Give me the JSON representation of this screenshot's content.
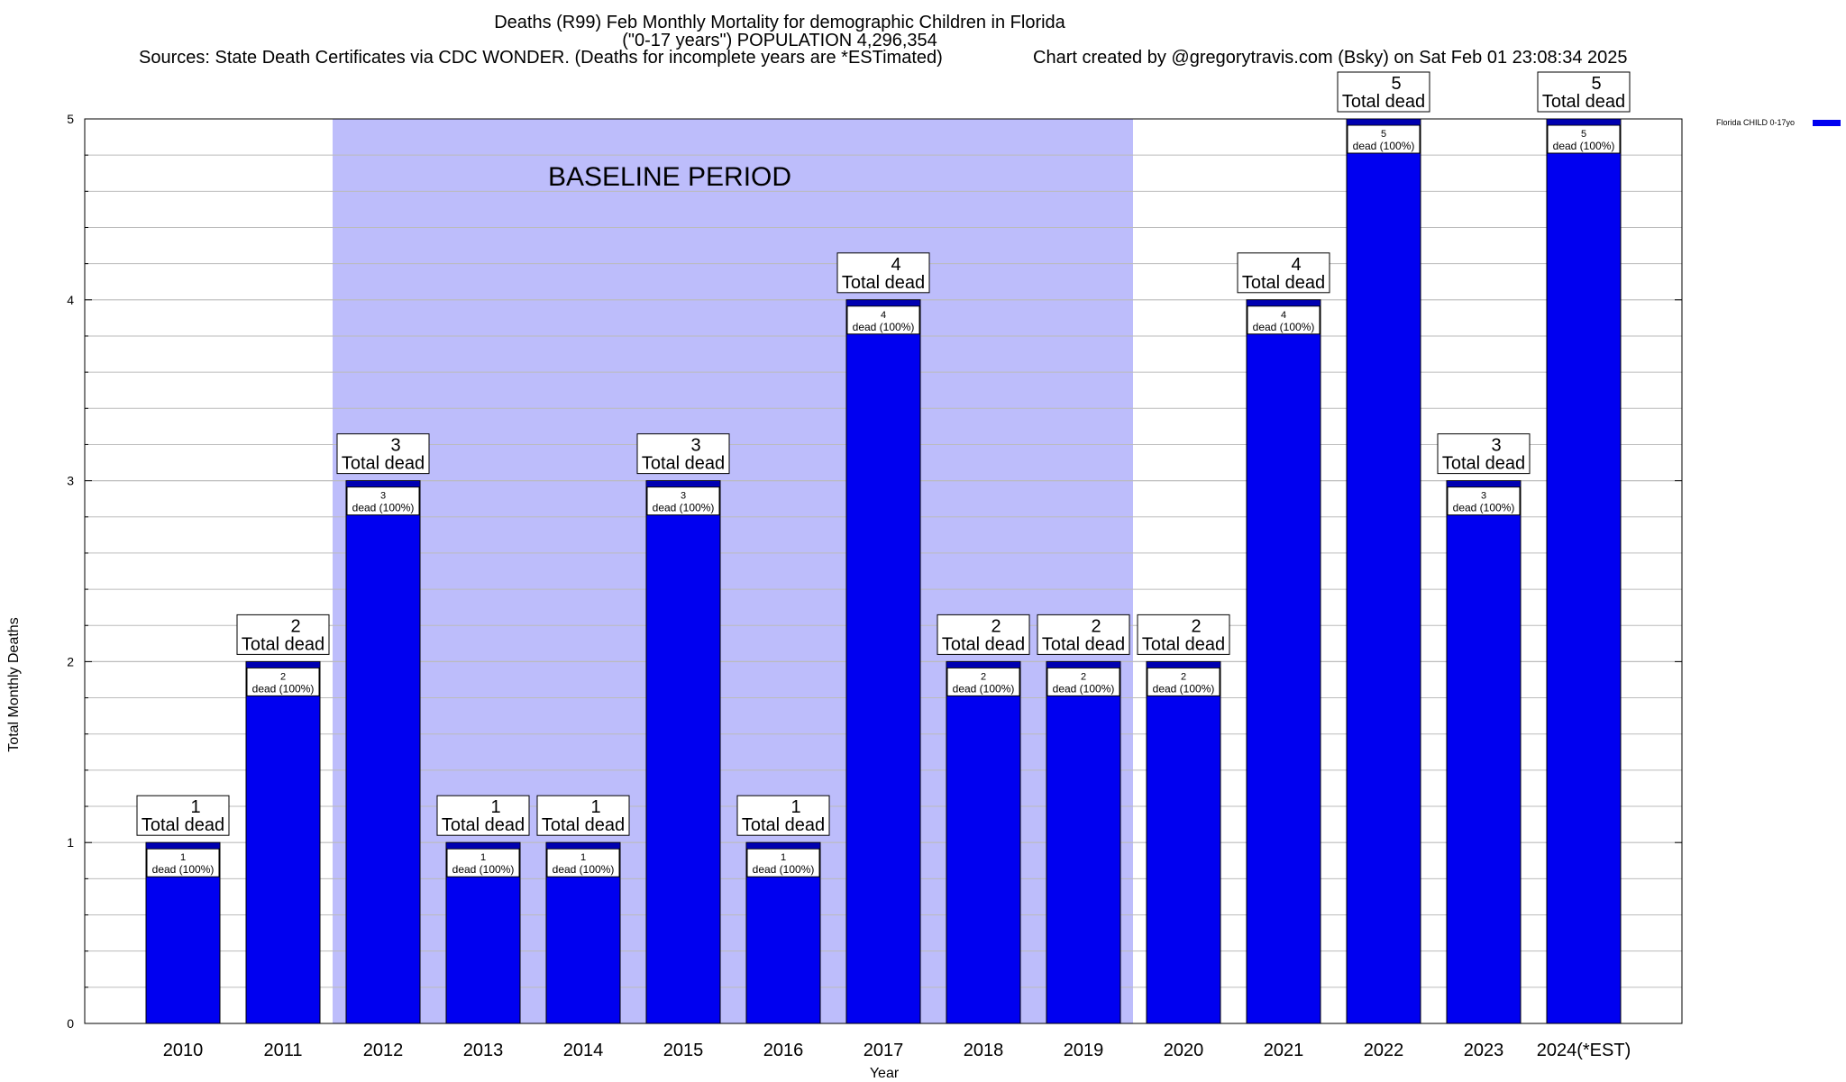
{
  "header": {
    "title_line1": "Deaths (R99) Feb Monthly Mortality for demographic Children in Florida",
    "title_line2": "(\"0-17 years\") POPULATION 4,296,354",
    "sources": "Sources: State Death Certificates via CDC WONDER. (Deaths for incomplete years are *ESTimated)",
    "credit": "Chart created by @gregorytravis.com (Bsky) on Sat Feb 01 23:08:34 2025"
  },
  "colors": {
    "bar": "#0000f0",
    "bar_top": "#0000b0",
    "baseline_shade": "#bdbdfb",
    "grid": "#bbbbbb"
  },
  "chart_data": {
    "type": "bar",
    "title": "Deaths (R99) Feb Monthly Mortality for demographic Children in Florida",
    "xlabel": "Year",
    "ylabel": "Total Monthly Deaths",
    "ylim": [
      0,
      5
    ],
    "yticks": [
      0,
      1,
      2,
      3,
      4,
      5
    ],
    "grid": true,
    "legend_position": "top-right",
    "categories": [
      "2010",
      "2011",
      "2012",
      "2013",
      "2014",
      "2015",
      "2016",
      "2017",
      "2018",
      "2019",
      "2020",
      "2021",
      "2022",
      "2023",
      "2024(*EST)"
    ],
    "series": [
      {
        "name": "Florida CHILD 0-17yo",
        "values": [
          1,
          2,
          3,
          1,
          1,
          3,
          1,
          4,
          2,
          2,
          2,
          4,
          5,
          3,
          5
        ]
      }
    ],
    "outer_label_suffix": "Total dead",
    "inner_label_suffix": "dead (100%)",
    "baseline_period": {
      "label": "BASELINE PERIOD",
      "from": "2012",
      "to": "2019"
    }
  }
}
